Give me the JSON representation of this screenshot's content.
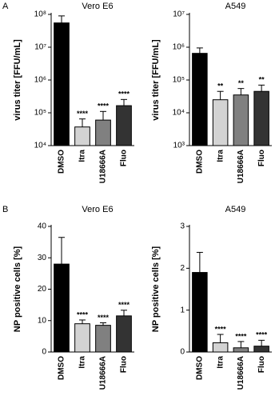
{
  "chart_data": [
    {
      "type": "bar",
      "panel_label": "A",
      "title": "Vero E6",
      "y_label": "virus titer [FFU/mL]",
      "log_scale": true,
      "ylim": [
        10000,
        100000000
      ],
      "yticks": [
        {
          "value": 10000,
          "label": "10⁴"
        },
        {
          "value": 100000,
          "label": "10⁵"
        },
        {
          "value": 1000000,
          "label": "10⁶"
        },
        {
          "value": 10000000,
          "label": "10⁷"
        },
        {
          "value": 100000000,
          "label": "10⁸"
        }
      ],
      "categories": [
        "DMSO",
        "Itra",
        "U18666A",
        "Fluo"
      ],
      "values": [
        55000000,
        37000.0,
        60000,
        165000
      ],
      "errors": [
        35000000,
        28000,
        50000,
        90000
      ],
      "annotations": [
        null,
        "****",
        "****",
        "****"
      ],
      "colors": [
        "#000000",
        "#d3d3d3",
        "#808080",
        "#333333"
      ]
    },
    {
      "type": "bar",
      "title": "A549",
      "y_label": "virus titer [FFU/mL]",
      "log_scale": true,
      "ylim": [
        1000,
        10000000
      ],
      "yticks": [
        {
          "value": 1000,
          "label": "10³"
        },
        {
          "value": 10000,
          "label": "10⁴"
        },
        {
          "value": 100000,
          "label": "10⁵"
        },
        {
          "value": 1000000,
          "label": "10⁶"
        },
        {
          "value": 10000000,
          "label": "10⁷"
        }
      ],
      "categories": [
        "DMSO",
        "Itra",
        "U18666A",
        "Fluo"
      ],
      "values": [
        650000,
        25000,
        35000,
        45000
      ],
      "errors": [
        300000,
        20000,
        20000,
        25000
      ],
      "annotations": [
        null,
        "**",
        "**",
        "**"
      ],
      "colors": [
        "#000000",
        "#d3d3d3",
        "#808080",
        "#333333"
      ]
    },
    {
      "type": "bar",
      "panel_label": "B",
      "title": "Vero E6",
      "y_label": "NP positive cells [%]",
      "log_scale": false,
      "ylim": [
        0,
        40
      ],
      "yticks": [
        0,
        10,
        20,
        30,
        40
      ],
      "categories": [
        "DMSO",
        "Itra",
        "U18666A",
        "Fluo"
      ],
      "values": [
        28,
        9,
        8.5,
        11.5
      ],
      "errors": [
        8.5,
        1.2,
        0.8,
        1.8
      ],
      "annotations": [
        null,
        "****",
        "****",
        "****"
      ],
      "colors": [
        "#000000",
        "#d3d3d3",
        "#808080",
        "#333333"
      ]
    },
    {
      "type": "bar",
      "title": "A549",
      "y_label": "NP positive cells [%]",
      "log_scale": false,
      "ylim": [
        0,
        3
      ],
      "yticks": [
        0,
        1,
        2,
        3
      ],
      "categories": [
        "DMSO",
        "Itra",
        "U18666A",
        "Fluo"
      ],
      "values": [
        1.9,
        0.22,
        0.1,
        0.14
      ],
      "errors": [
        0.48,
        0.2,
        0.15,
        0.14
      ],
      "annotations": [
        null,
        "****",
        "****",
        "****"
      ],
      "colors": [
        "#000000",
        "#d3d3d3",
        "#808080",
        "#333333"
      ]
    }
  ]
}
